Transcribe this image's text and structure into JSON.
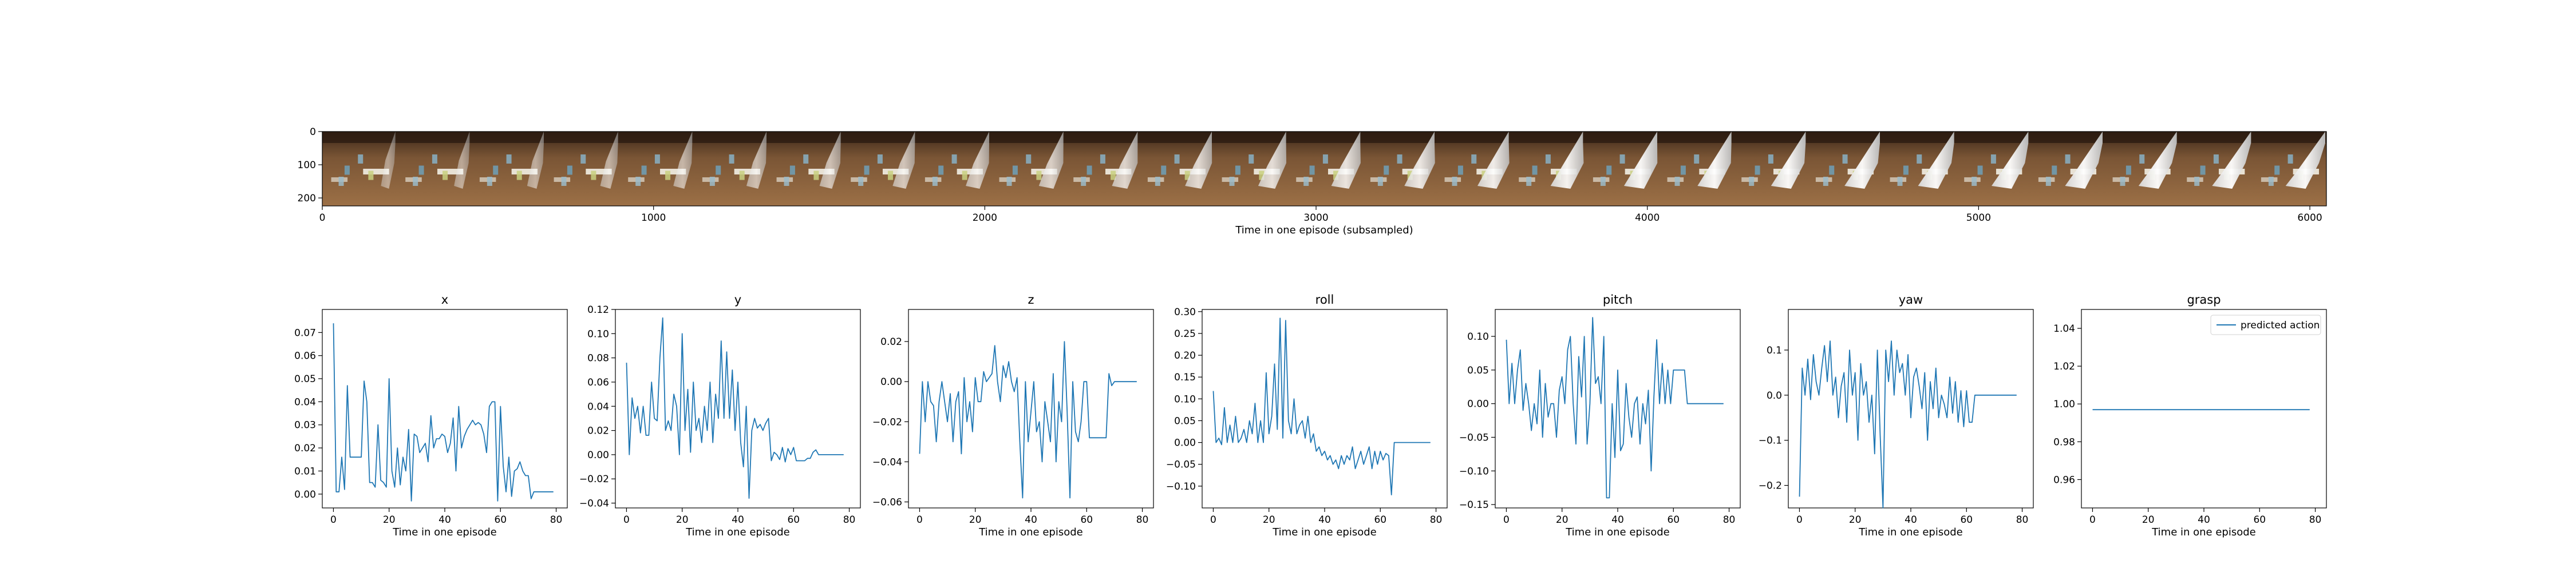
{
  "colors": {
    "series": "#1f77b4",
    "axes": "#000000",
    "background": "#ffffff"
  },
  "strip": {
    "xlabel": "Time in one episode (subsampled)",
    "xticks": [
      0,
      1000,
      2000,
      3000,
      4000,
      5000,
      6000
    ],
    "yticks": [
      0,
      100,
      200
    ],
    "xlim": [
      0,
      6050
    ],
    "ylim": [
      224,
      0
    ],
    "n_frames": 27,
    "legend_note": "image strip of robot arm frames"
  },
  "legend": {
    "label": "predicted action"
  },
  "chart_data": [
    {
      "type": "line",
      "title": "x",
      "xlabel": "Time in one episode",
      "ylabel": "",
      "xlim": [
        -4,
        84
      ],
      "ylim": [
        -0.006,
        0.08
      ],
      "xticks": [
        0,
        20,
        40,
        60,
        80
      ],
      "yticks": [
        0.0,
        0.01,
        0.02,
        0.03,
        0.04,
        0.05,
        0.06,
        0.07
      ],
      "ytick_labels": [
        "0.00",
        "0.01",
        "0.02",
        "0.03",
        "0.04",
        "0.05",
        "0.06",
        "0.07"
      ],
      "values": [
        0.074,
        0.001,
        0.001,
        0.016,
        0.002,
        0.047,
        0.016,
        0.016,
        0.016,
        0.016,
        0.016,
        0.049,
        0.04,
        0.005,
        0.005,
        0.003,
        0.03,
        0.006,
        0.005,
        0.003,
        0.05,
        0.01,
        0.003,
        0.02,
        0.004,
        0.016,
        0.01,
        0.028,
        -0.003,
        0.026,
        0.025,
        0.018,
        0.02,
        0.022,
        0.014,
        0.034,
        0.02,
        0.024,
        0.024,
        0.026,
        0.025,
        0.018,
        0.022,
        0.033,
        0.01,
        0.038,
        0.02,
        0.025,
        0.028,
        0.03,
        0.032,
        0.03,
        0.031,
        0.03,
        0.026,
        0.018,
        0.038,
        0.04,
        0.04,
        -0.003,
        0.038,
        0.012,
        0.001,
        0.016,
        -0.001,
        0.01,
        0.011,
        0.014,
        0.01,
        0.008,
        0.008,
        -0.002,
        0.001,
        0.001,
        0.001,
        0.001,
        0.001,
        0.001,
        0.001,
        0.001
      ]
    },
    {
      "type": "line",
      "title": "y",
      "xlabel": "Time in one episode",
      "ylabel": "",
      "xlim": [
        -4,
        84
      ],
      "ylim": [
        -0.044,
        0.12
      ],
      "xticks": [
        0,
        20,
        40,
        60,
        80
      ],
      "yticks": [
        -0.04,
        -0.02,
        0.0,
        0.02,
        0.04,
        0.06,
        0.08,
        0.1,
        0.12
      ],
      "ytick_labels": [
        "−0.04",
        "−0.02",
        "0.00",
        "0.02",
        "0.04",
        "0.06",
        "0.08",
        "0.10",
        "0.12"
      ],
      "values": [
        0.076,
        0.0,
        0.047,
        0.03,
        0.04,
        0.018,
        0.04,
        0.016,
        0.016,
        0.06,
        0.03,
        0.028,
        0.08,
        0.113,
        0.02,
        0.028,
        0.02,
        0.05,
        0.04,
        0.0,
        0.1,
        0.02,
        0.054,
        0.002,
        0.06,
        0.02,
        0.03,
        0.01,
        0.04,
        0.02,
        0.06,
        0.01,
        0.05,
        0.03,
        0.094,
        0.03,
        0.085,
        0.03,
        0.07,
        0.02,
        0.06,
        0.01,
        -0.01,
        0.04,
        -0.036,
        0.02,
        0.03,
        0.022,
        0.025,
        0.02,
        0.026,
        0.03,
        -0.005,
        0.002,
        0.0,
        -0.004,
        0.006,
        -0.006,
        0.005,
        0.0,
        0.006,
        -0.005,
        -0.005,
        -0.005,
        -0.005,
        -0.003,
        -0.003,
        0.002,
        0.004,
        0.0,
        0.0,
        0.0,
        0.0,
        0.0,
        0.0,
        0.0,
        0.0,
        0.0,
        0.0
      ]
    },
    {
      "type": "line",
      "title": "z",
      "xlabel": "Time in one episode",
      "ylabel": "",
      "xlim": [
        -4,
        84
      ],
      "ylim": [
        -0.063,
        0.036
      ],
      "xticks": [
        0,
        20,
        40,
        60,
        80
      ],
      "yticks": [
        -0.06,
        -0.04,
        -0.02,
        0.0,
        0.02
      ],
      "ytick_labels": [
        "−0.06",
        "−0.04",
        "−0.02",
        "0.00",
        "0.02"
      ],
      "values": [
        -0.036,
        0.0,
        -0.02,
        0.0,
        -0.01,
        -0.012,
        -0.03,
        -0.01,
        0.0,
        -0.01,
        -0.02,
        -0.006,
        -0.03,
        -0.01,
        -0.005,
        -0.036,
        0.002,
        -0.02,
        -0.01,
        -0.025,
        0.002,
        -0.01,
        -0.01,
        0.005,
        0.0,
        0.002,
        0.004,
        0.018,
        0.0,
        -0.01,
        0.008,
        0.002,
        0.01,
        0.0,
        -0.005,
        0.002,
        -0.03,
        -0.058,
        0.0,
        -0.03,
        -0.015,
        0.0,
        -0.025,
        -0.02,
        -0.04,
        -0.01,
        -0.02,
        -0.03,
        0.004,
        -0.04,
        -0.01,
        -0.02,
        0.02,
        -0.015,
        -0.058,
        0.0,
        -0.025,
        -0.03,
        -0.02,
        0.0,
        0.0,
        -0.028,
        -0.028,
        -0.028,
        -0.028,
        -0.028,
        -0.028,
        -0.028,
        0.004,
        -0.002,
        0.0,
        0.0,
        0.0,
        0.0,
        0.0,
        0.0,
        0.0,
        0.0,
        0.0
      ]
    },
    {
      "type": "line",
      "title": "roll",
      "xlabel": "Time in one episode",
      "ylabel": "",
      "xlim": [
        -4,
        84
      ],
      "ylim": [
        -0.15,
        0.305
      ],
      "xticks": [
        0,
        20,
        40,
        60,
        80
      ],
      "yticks": [
        -0.1,
        -0.05,
        0.0,
        0.05,
        0.1,
        0.15,
        0.2,
        0.25,
        0.3
      ],
      "ytick_labels": [
        "−0.10",
        "−0.05",
        "0.00",
        "0.05",
        "0.10",
        "0.15",
        "0.20",
        "0.25",
        "0.30"
      ],
      "values": [
        0.118,
        0.0,
        0.01,
        -0.005,
        0.08,
        0.0,
        0.04,
        0.0,
        0.06,
        0.0,
        0.01,
        0.03,
        0.0,
        0.05,
        0.02,
        0.09,
        0.0,
        0.05,
        0.0,
        0.16,
        0.02,
        0.06,
        0.18,
        0.03,
        0.285,
        0.01,
        0.28,
        0.05,
        0.02,
        0.1,
        0.02,
        0.04,
        0.05,
        0.01,
        0.06,
        0.0,
        0.02,
        -0.02,
        -0.01,
        -0.03,
        -0.02,
        -0.04,
        -0.03,
        -0.05,
        -0.04,
        -0.06,
        -0.03,
        -0.05,
        -0.03,
        -0.04,
        -0.01,
        -0.06,
        -0.04,
        -0.02,
        -0.05,
        -0.03,
        -0.01,
        -0.06,
        -0.02,
        -0.05,
        -0.02,
        -0.04,
        -0.025,
        -0.03,
        -0.12,
        0.0,
        0.0,
        0.0,
        0.0,
        0.0,
        0.0,
        0.0,
        0.0,
        0.0,
        0.0,
        0.0,
        0.0,
        0.0,
        0.0
      ]
    },
    {
      "type": "line",
      "title": "pitch",
      "xlabel": "Time in one episode",
      "ylabel": "",
      "xlim": [
        -4,
        84
      ],
      "ylim": [
        -0.155,
        0.14
      ],
      "xticks": [
        0,
        20,
        40,
        60,
        80
      ],
      "yticks": [
        -0.15,
        -0.1,
        -0.05,
        0.0,
        0.05,
        0.1
      ],
      "ytick_labels": [
        "−0.15",
        "−0.10",
        "−0.05",
        "0.00",
        "0.05",
        "0.10"
      ],
      "values": [
        0.095,
        0.0,
        0.06,
        0.0,
        0.05,
        0.08,
        -0.01,
        0.03,
        0.0,
        -0.04,
        0.0,
        -0.03,
        0.05,
        -0.05,
        0.03,
        -0.02,
        0.0,
        0.0,
        -0.05,
        0.02,
        0.04,
        0.0,
        0.08,
        0.1,
        0.0,
        -0.06,
        0.07,
        0.01,
        0.1,
        -0.06,
        0.0,
        0.128,
        0.03,
        0.04,
        0.0,
        0.1,
        -0.14,
        -0.14,
        0.0,
        -0.08,
        0.05,
        -0.07,
        -0.06,
        0.03,
        -0.02,
        -0.05,
        0.0,
        0.01,
        -0.06,
        0.0,
        -0.03,
        0.02,
        -0.1,
        0.01,
        0.095,
        0.0,
        0.06,
        0.0,
        0.05,
        0.0,
        0.05,
        0.05,
        0.05,
        0.05,
        0.05,
        0.0,
        0.0,
        0.0,
        0.0,
        0.0,
        0.0,
        0.0,
        0.0,
        0.0,
        0.0,
        0.0,
        0.0,
        0.0,
        0.0
      ]
    },
    {
      "type": "line",
      "title": "yaw",
      "xlabel": "Time in one episode",
      "ylabel": "",
      "xlim": [
        -4,
        84
      ],
      "ylim": [
        -0.25,
        0.19
      ],
      "xticks": [
        0,
        20,
        40,
        60,
        80
      ],
      "yticks": [
        -0.2,
        -0.1,
        0.0,
        0.1
      ],
      "ytick_labels": [
        "−0.2",
        "−0.1",
        "0.0",
        "0.1"
      ],
      "values": [
        -0.225,
        0.06,
        0.0,
        0.08,
        -0.01,
        0.09,
        0.03,
        0.0,
        0.06,
        0.11,
        0.03,
        0.12,
        0.0,
        0.04,
        -0.05,
        0.02,
        0.05,
        -0.06,
        0.1,
        0.0,
        0.05,
        -0.1,
        0.07,
        0.0,
        0.03,
        -0.06,
        0.0,
        -0.13,
        0.1,
        -0.09,
        -0.25,
        0.1,
        0.03,
        0.12,
        0.0,
        0.1,
        0.05,
        0.07,
        0.0,
        0.09,
        -0.05,
        0.04,
        0.06,
        0.02,
        -0.03,
        0.05,
        -0.1,
        0.03,
        -0.03,
        0.06,
        -0.05,
        0.0,
        -0.02,
        -0.05,
        0.04,
        -0.04,
        0.03,
        -0.06,
        0.01,
        -0.07,
        0.01,
        -0.06,
        -0.06,
        0.0,
        0.0,
        0.0,
        0.0,
        0.0,
        0.0,
        0.0,
        0.0,
        0.0,
        0.0,
        0.0,
        0.0,
        0.0,
        0.0,
        0.0,
        0.0
      ]
    },
    {
      "type": "line",
      "title": "grasp",
      "xlabel": "Time in one episode",
      "ylabel": "",
      "xlim": [
        -4,
        84
      ],
      "ylim": [
        0.945,
        1.05
      ],
      "xticks": [
        0,
        20,
        40,
        60,
        80
      ],
      "yticks": [
        0.96,
        0.98,
        1.0,
        1.02,
        1.04
      ],
      "ytick_labels": [
        "0.96",
        "0.98",
        "1.00",
        "1.02",
        "1.04"
      ],
      "legend": "top-right",
      "values": [
        0.997,
        0.997,
        0.997,
        0.997,
        0.997,
        0.997,
        0.997,
        0.997,
        0.997,
        0.997,
        0.997,
        0.997,
        0.997,
        0.997,
        0.997,
        0.997,
        0.997,
        0.997,
        0.997,
        0.997,
        0.997,
        0.997,
        0.997,
        0.997,
        0.997,
        0.997,
        0.997,
        0.997,
        0.997,
        0.997,
        0.997,
        0.997,
        0.997,
        0.997,
        0.997,
        0.997,
        0.997,
        0.997,
        0.997,
        0.997,
        0.997,
        0.997,
        0.997,
        0.997,
        0.997,
        0.997,
        0.997,
        0.997,
        0.997,
        0.997,
        0.997,
        0.997,
        0.997,
        0.997,
        0.997,
        0.997,
        0.997,
        0.997,
        0.997,
        0.997,
        0.997,
        0.997,
        0.997,
        0.997,
        0.997,
        0.997,
        0.997,
        0.997,
        0.997,
        0.997,
        0.997,
        0.997,
        0.997,
        0.997,
        0.997,
        0.997,
        0.997,
        0.997,
        0.997
      ]
    }
  ]
}
